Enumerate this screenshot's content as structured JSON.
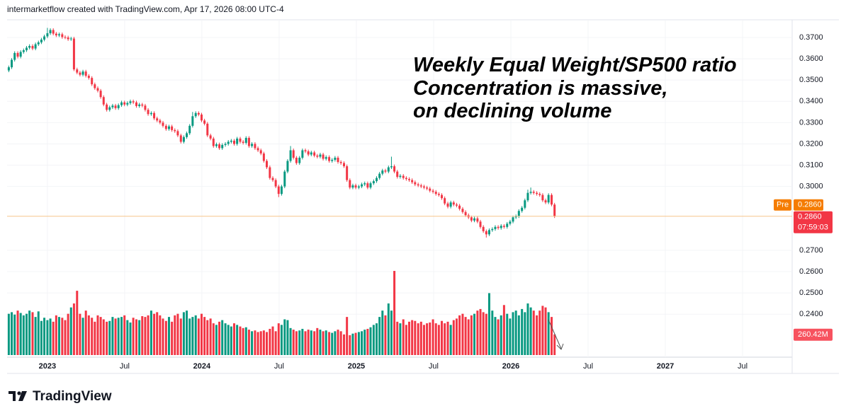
{
  "chart_data": {
    "type": "candlestick",
    "header": "intermarketflow created with TradingView.com, Apr 17, 2026 08:00 UTC-4",
    "annotation_lines": [
      "Weekly Equal Weight/SP500 ratio",
      "Concentration is massive,",
      "on declining volume"
    ],
    "brand": "TradingView",
    "up_color": "#089981",
    "down_color": "#f23645",
    "grid": true,
    "xlim": [
      2022.739,
      2027.821
    ],
    "xticks": [
      {
        "value": 2023,
        "label": "2023"
      },
      {
        "value": 2023.5,
        "label": "Jul"
      },
      {
        "value": 2024,
        "label": "2024"
      },
      {
        "value": 2024.5,
        "label": "Jul"
      },
      {
        "value": 2025,
        "label": "2025"
      },
      {
        "value": 2025.5,
        "label": "Jul"
      },
      {
        "value": 2026,
        "label": "2026"
      },
      {
        "value": 2026.5,
        "label": "Jul"
      },
      {
        "value": 2027,
        "label": "2027"
      },
      {
        "value": 2027.5,
        "label": "Jul"
      }
    ],
    "ylim": [
      0.2198,
      0.3783
    ],
    "yticks": [
      {
        "value": 0.24,
        "label": "0.2400"
      },
      {
        "value": 0.25,
        "label": "0.2500"
      },
      {
        "value": 0.26,
        "label": "0.2600"
      },
      {
        "value": 0.27,
        "label": "0.2700"
      },
      {
        "value": 0.3,
        "label": "0.3000"
      },
      {
        "value": 0.31,
        "label": "0.3100"
      },
      {
        "value": 0.32,
        "label": "0.3200"
      },
      {
        "value": 0.33,
        "label": "0.3300"
      },
      {
        "value": 0.34,
        "label": "0.3400"
      },
      {
        "value": 0.35,
        "label": "0.3500"
      },
      {
        "value": 0.36,
        "label": "0.3600"
      },
      {
        "value": 0.37,
        "label": "0.3700"
      }
    ],
    "volume_lim": [
      0,
      4250
    ],
    "pre_tag": "Pre",
    "pre_price": {
      "value": 0.286,
      "label": "0.2860"
    },
    "last_price": {
      "value": 0.286,
      "label": "0.2860"
    },
    "countdown": "07:59:03",
    "volume_tag": {
      "value": 260.42,
      "label": "260.42M"
    },
    "x": [
      2022.75,
      2022.769,
      2022.788,
      2022.808,
      2022.827,
      2022.846,
      2022.865,
      2022.884,
      2022.904,
      2022.923,
      2022.942,
      2022.961,
      2022.98,
      2023.0,
      2023.019,
      2023.038,
      2023.057,
      2023.076,
      2023.096,
      2023.115,
      2023.134,
      2023.153,
      2023.172,
      2023.192,
      2023.211,
      2023.23,
      2023.249,
      2023.268,
      2023.288,
      2023.307,
      2023.326,
      2023.345,
      2023.364,
      2023.384,
      2023.403,
      2023.422,
      2023.441,
      2023.46,
      2023.48,
      2023.499,
      2023.518,
      2023.537,
      2023.556,
      2023.576,
      2023.595,
      2023.614,
      2023.633,
      2023.652,
      2023.672,
      2023.691,
      2023.71,
      2023.729,
      2023.748,
      2023.768,
      2023.787,
      2023.806,
      2023.825,
      2023.844,
      2023.864,
      2023.883,
      2023.902,
      2023.921,
      2023.94,
      2023.96,
      2023.979,
      2023.998,
      2024.017,
      2024.036,
      2024.056,
      2024.075,
      2024.094,
      2024.113,
      2024.132,
      2024.152,
      2024.171,
      2024.19,
      2024.209,
      2024.228,
      2024.248,
      2024.267,
      2024.286,
      2024.305,
      2024.324,
      2024.344,
      2024.363,
      2024.382,
      2024.401,
      2024.42,
      2024.44,
      2024.459,
      2024.478,
      2024.497,
      2024.516,
      2024.536,
      2024.555,
      2024.574,
      2024.593,
      2024.612,
      2024.632,
      2024.651,
      2024.67,
      2024.689,
      2024.708,
      2024.728,
      2024.747,
      2024.766,
      2024.785,
      2024.804,
      2024.824,
      2024.843,
      2024.862,
      2024.881,
      2024.9,
      2024.92,
      2024.939,
      2024.958,
      2024.977,
      2024.996,
      2025.016,
      2025.035,
      2025.054,
      2025.073,
      2025.092,
      2025.112,
      2025.131,
      2025.15,
      2025.169,
      2025.188,
      2025.208,
      2025.227,
      2025.246,
      2025.265,
      2025.284,
      2025.304,
      2025.323,
      2025.342,
      2025.361,
      2025.38,
      2025.4,
      2025.419,
      2025.438,
      2025.457,
      2025.476,
      2025.496,
      2025.515,
      2025.534,
      2025.553,
      2025.572,
      2025.592,
      2025.611,
      2025.63,
      2025.649,
      2025.668,
      2025.688,
      2025.707,
      2025.726,
      2025.745,
      2025.764,
      2025.784,
      2025.803,
      2025.822,
      2025.841,
      2025.86,
      2025.88,
      2025.899,
      2025.918,
      2025.937,
      2025.956,
      2025.976,
      2025.995,
      2026.014,
      2026.033,
      2026.052,
      2026.072,
      2026.091,
      2026.11,
      2026.129,
      2026.148,
      2026.168,
      2026.187,
      2026.206,
      2026.225,
      2026.244,
      2026.264,
      2026.283
    ],
    "open": [
      0.3545,
      0.356,
      0.3595,
      0.3627,
      0.361,
      0.3632,
      0.364,
      0.3652,
      0.366,
      0.3648,
      0.3668,
      0.3677,
      0.369,
      0.3705,
      0.372,
      0.3735,
      0.3718,
      0.371,
      0.3715,
      0.3702,
      0.37,
      0.3692,
      0.3695,
      0.355,
      0.3535,
      0.3525,
      0.354,
      0.352,
      0.351,
      0.348,
      0.3462,
      0.345,
      0.342,
      0.3385,
      0.336,
      0.3372,
      0.338,
      0.3368,
      0.3382,
      0.3395,
      0.3385,
      0.3392,
      0.34,
      0.3395,
      0.3378,
      0.3385,
      0.338,
      0.336,
      0.334,
      0.3345,
      0.332,
      0.331,
      0.33,
      0.3285,
      0.327,
      0.3282,
      0.3265,
      0.326,
      0.324,
      0.321,
      0.3232,
      0.325,
      0.3285,
      0.333,
      0.3345,
      0.3338,
      0.331,
      0.3295,
      0.324,
      0.3225,
      0.319,
      0.3198,
      0.318,
      0.3195,
      0.32,
      0.321,
      0.3215,
      0.32,
      0.3225,
      0.321,
      0.3205,
      0.3228,
      0.319,
      0.32,
      0.318,
      0.317,
      0.3155,
      0.312,
      0.309,
      0.304,
      0.303,
      0.3,
      0.2965,
      0.3,
      0.307,
      0.312,
      0.317,
      0.3135,
      0.311,
      0.3135,
      0.317,
      0.3165,
      0.315,
      0.316,
      0.3145,
      0.314,
      0.315,
      0.313,
      0.3138,
      0.312,
      0.3125,
      0.3135,
      0.3115,
      0.311,
      0.3095,
      0.303,
      0.2995,
      0.3005,
      0.2995,
      0.3,
      0.301,
      0.3015,
      0.2995,
      0.3015,
      0.3025,
      0.304,
      0.306,
      0.3075,
      0.307,
      0.309,
      0.3095,
      0.307,
      0.3045,
      0.305,
      0.304,
      0.3035,
      0.303,
      0.302,
      0.301,
      0.3005,
      0.3,
      0.2995,
      0.299,
      0.298,
      0.2975,
      0.2965,
      0.296,
      0.2945,
      0.292,
      0.2905,
      0.2925,
      0.2915,
      0.291,
      0.2895,
      0.288,
      0.2865,
      0.2855,
      0.284,
      0.285,
      0.2835,
      0.281,
      0.279,
      0.2775,
      0.2795,
      0.28,
      0.281,
      0.2805,
      0.2815,
      0.281,
      0.2825,
      0.2835,
      0.2855,
      0.286,
      0.2885,
      0.29,
      0.2935,
      0.297,
      0.2975,
      0.297,
      0.2965,
      0.296,
      0.2935,
      0.2925,
      0.296,
      0.2915
    ],
    "high": [
      0.3568,
      0.3603,
      0.3635,
      0.3635,
      0.364,
      0.3648,
      0.366,
      0.3668,
      0.3668,
      0.3676,
      0.3685,
      0.3698,
      0.3713,
      0.3745,
      0.3743,
      0.3743,
      0.3726,
      0.3723,
      0.3723,
      0.371,
      0.3708,
      0.3703,
      0.3703,
      0.3558,
      0.3543,
      0.3548,
      0.3548,
      0.3528,
      0.3518,
      0.3488,
      0.347,
      0.3458,
      0.3428,
      0.3393,
      0.338,
      0.3388,
      0.3388,
      0.339,
      0.3403,
      0.3403,
      0.34,
      0.3408,
      0.3408,
      0.3403,
      0.3393,
      0.3393,
      0.3388,
      0.3368,
      0.3353,
      0.3353,
      0.3328,
      0.3318,
      0.3308,
      0.3293,
      0.329,
      0.329,
      0.3273,
      0.3268,
      0.3248,
      0.324,
      0.3258,
      0.3293,
      0.335,
      0.3353,
      0.3353,
      0.3346,
      0.3318,
      0.3303,
      0.3248,
      0.3233,
      0.3206,
      0.3206,
      0.3203,
      0.3208,
      0.3218,
      0.3223,
      0.3223,
      0.3233,
      0.3233,
      0.3218,
      0.3236,
      0.3236,
      0.3208,
      0.3208,
      0.3188,
      0.3178,
      0.3163,
      0.3128,
      0.3098,
      0.3048,
      0.3038,
      0.3008,
      0.3008,
      0.3078,
      0.3128,
      0.319,
      0.3178,
      0.3143,
      0.3143,
      0.3178,
      0.3178,
      0.3173,
      0.3168,
      0.3168,
      0.3153,
      0.3158,
      0.3158,
      0.3146,
      0.3146,
      0.3133,
      0.3143,
      0.3143,
      0.3123,
      0.3118,
      0.3103,
      0.3038,
      0.3013,
      0.3013,
      0.3008,
      0.3018,
      0.3023,
      0.3023,
      0.3023,
      0.3033,
      0.3048,
      0.3068,
      0.3083,
      0.3083,
      0.3098,
      0.314,
      0.3103,
      0.3078,
      0.3058,
      0.3058,
      0.3048,
      0.3043,
      0.3038,
      0.3028,
      0.3018,
      0.3013,
      0.3008,
      0.3003,
      0.2998,
      0.2988,
      0.2983,
      0.2973,
      0.2968,
      0.2953,
      0.2928,
      0.2933,
      0.2933,
      0.2923,
      0.2918,
      0.2903,
      0.2888,
      0.2873,
      0.2863,
      0.2858,
      0.2858,
      0.2843,
      0.2818,
      0.2798,
      0.2803,
      0.2808,
      0.2818,
      0.2818,
      0.2823,
      0.2823,
      0.2833,
      0.2843,
      0.2863,
      0.2868,
      0.2893,
      0.2908,
      0.2943,
      0.2985,
      0.2995,
      0.2983,
      0.2978,
      0.2973,
      0.2968,
      0.2943,
      0.2968,
      0.2968,
      0.2923
    ],
    "low": [
      0.3537,
      0.3552,
      0.3587,
      0.3602,
      0.3602,
      0.3624,
      0.3632,
      0.3644,
      0.364,
      0.364,
      0.366,
      0.3669,
      0.3682,
      0.3697,
      0.3712,
      0.371,
      0.3702,
      0.3702,
      0.3694,
      0.3692,
      0.3684,
      0.3684,
      0.3542,
      0.3527,
      0.3517,
      0.3517,
      0.3512,
      0.3502,
      0.3472,
      0.3454,
      0.3442,
      0.3412,
      0.3377,
      0.3352,
      0.3352,
      0.3364,
      0.336,
      0.336,
      0.3374,
      0.3377,
      0.3377,
      0.3384,
      0.3387,
      0.337,
      0.337,
      0.3372,
      0.3352,
      0.3332,
      0.3332,
      0.3312,
      0.3302,
      0.3292,
      0.3277,
      0.3262,
      0.3262,
      0.3257,
      0.3252,
      0.3232,
      0.3202,
      0.3202,
      0.3224,
      0.3242,
      0.3277,
      0.3322,
      0.333,
      0.3302,
      0.3287,
      0.3232,
      0.3217,
      0.3182,
      0.3182,
      0.3172,
      0.3172,
      0.3187,
      0.3192,
      0.3202,
      0.3192,
      0.3192,
      0.3202,
      0.3197,
      0.3197,
      0.3182,
      0.3182,
      0.3172,
      0.3162,
      0.3147,
      0.3112,
      0.3082,
      0.3032,
      0.3022,
      0.2992,
      0.295,
      0.2957,
      0.2992,
      0.3062,
      0.3112,
      0.3127,
      0.3102,
      0.3102,
      0.3127,
      0.3157,
      0.3142,
      0.3142,
      0.3137,
      0.3132,
      0.3132,
      0.3122,
      0.3122,
      0.3112,
      0.3112,
      0.3117,
      0.3107,
      0.3102,
      0.3087,
      0.3022,
      0.2987,
      0.2987,
      0.2987,
      0.2987,
      0.2992,
      0.3002,
      0.2987,
      0.2987,
      0.3007,
      0.3017,
      0.3032,
      0.3052,
      0.3062,
      0.3062,
      0.3082,
      0.3062,
      0.3037,
      0.3037,
      0.3032,
      0.3027,
      0.3022,
      0.3012,
      0.3002,
      0.2997,
      0.2992,
      0.2987,
      0.2982,
      0.2972,
      0.2967,
      0.2957,
      0.2952,
      0.2937,
      0.2912,
      0.2897,
      0.2897,
      0.2907,
      0.2902,
      0.2887,
      0.2872,
      0.2857,
      0.2847,
      0.2832,
      0.2832,
      0.2827,
      0.2802,
      0.2782,
      0.276,
      0.2767,
      0.2787,
      0.2792,
      0.2797,
      0.2797,
      0.2802,
      0.2802,
      0.2817,
      0.2827,
      0.2847,
      0.2852,
      0.2877,
      0.2892,
      0.2927,
      0.2962,
      0.2962,
      0.2957,
      0.2952,
      0.2927,
      0.2917,
      0.2917,
      0.2907,
      0.2852
    ],
    "close": [
      0.356,
      0.3595,
      0.3627,
      0.361,
      0.3632,
      0.364,
      0.3652,
      0.366,
      0.3648,
      0.3668,
      0.3677,
      0.369,
      0.3705,
      0.372,
      0.3735,
      0.3718,
      0.371,
      0.3715,
      0.3702,
      0.37,
      0.3692,
      0.3695,
      0.355,
      0.3535,
      0.3525,
      0.354,
      0.352,
      0.351,
      0.348,
      0.3462,
      0.345,
      0.342,
      0.3385,
      0.336,
      0.3372,
      0.338,
      0.3368,
      0.3382,
      0.3395,
      0.3385,
      0.3392,
      0.34,
      0.3395,
      0.3378,
      0.3385,
      0.338,
      0.336,
      0.334,
      0.3345,
      0.332,
      0.331,
      0.33,
      0.3285,
      0.327,
      0.3282,
      0.3265,
      0.326,
      0.324,
      0.321,
      0.3232,
      0.325,
      0.3285,
      0.333,
      0.3345,
      0.3338,
      0.331,
      0.3295,
      0.324,
      0.3225,
      0.319,
      0.3198,
      0.318,
      0.3195,
      0.32,
      0.321,
      0.3215,
      0.32,
      0.3225,
      0.321,
      0.3205,
      0.3228,
      0.319,
      0.32,
      0.318,
      0.317,
      0.3155,
      0.312,
      0.309,
      0.304,
      0.303,
      0.3,
      0.2965,
      0.3,
      0.307,
      0.312,
      0.317,
      0.3135,
      0.311,
      0.3135,
      0.317,
      0.3165,
      0.315,
      0.316,
      0.3145,
      0.314,
      0.315,
      0.313,
      0.3138,
      0.312,
      0.3125,
      0.3135,
      0.3115,
      0.311,
      0.3095,
      0.303,
      0.2995,
      0.3005,
      0.2995,
      0.3,
      0.301,
      0.3015,
      0.2995,
      0.3015,
      0.3025,
      0.304,
      0.306,
      0.3075,
      0.307,
      0.309,
      0.3095,
      0.307,
      0.3045,
      0.305,
      0.304,
      0.3035,
      0.303,
      0.302,
      0.301,
      0.3005,
      0.3,
      0.2995,
      0.299,
      0.298,
      0.2975,
      0.2965,
      0.296,
      0.2945,
      0.292,
      0.2905,
      0.2925,
      0.2915,
      0.291,
      0.2895,
      0.288,
      0.2865,
      0.2855,
      0.284,
      0.285,
      0.2835,
      0.281,
      0.279,
      0.2775,
      0.2795,
      0.28,
      0.281,
      0.2805,
      0.2815,
      0.281,
      0.2825,
      0.2835,
      0.2855,
      0.286,
      0.2885,
      0.29,
      0.2935,
      0.297,
      0.2975,
      0.297,
      0.2965,
      0.296,
      0.2935,
      0.2925,
      0.296,
      0.2915,
      0.286
    ],
    "volume": [
      520,
      540,
      510,
      560,
      530,
      500,
      520,
      560,
      540,
      480,
      550,
      430,
      470,
      440,
      460,
      420,
      500,
      480,
      470,
      440,
      520,
      600,
      650,
      810,
      520,
      470,
      560,
      500,
      470,
      420,
      500,
      480,
      450,
      420,
      430,
      480,
      460,
      470,
      480,
      500,
      440,
      410,
      470,
      450,
      440,
      490,
      480,
      500,
      560,
      520,
      540,
      500,
      460,
      430,
      480,
      420,
      500,
      520,
      460,
      540,
      560,
      460,
      480,
      500,
      460,
      520,
      480,
      440,
      460,
      400,
      380,
      420,
      440,
      400,
      380,
      360,
      400,
      380,
      360,
      340,
      350,
      320,
      300,
      310,
      290,
      300,
      310,
      290,
      330,
      360,
      300,
      400,
      380,
      450,
      440,
      340,
      320,
      300,
      310,
      330,
      300,
      320,
      310,
      300,
      340,
      320,
      300,
      310,
      290,
      280,
      300,
      320,
      300,
      260,
      480,
      250,
      270,
      280,
      290,
      300,
      320,
      330,
      350,
      380,
      400,
      480,
      560,
      500,
      650,
      560,
      1060,
      420,
      400,
      450,
      380,
      420,
      440,
      430,
      400,
      420,
      380,
      400,
      410,
      450,
      400,
      380,
      430,
      400,
      420,
      380,
      440,
      460,
      500,
      520,
      480,
      450,
      500,
      520,
      560,
      580,
      540,
      520,
      780,
      560,
      480,
      450,
      500,
      630,
      520,
      460,
      540,
      560,
      500,
      580,
      540,
      650,
      600,
      560,
      500,
      560,
      620,
      600,
      540,
      480,
      260.42
    ]
  }
}
